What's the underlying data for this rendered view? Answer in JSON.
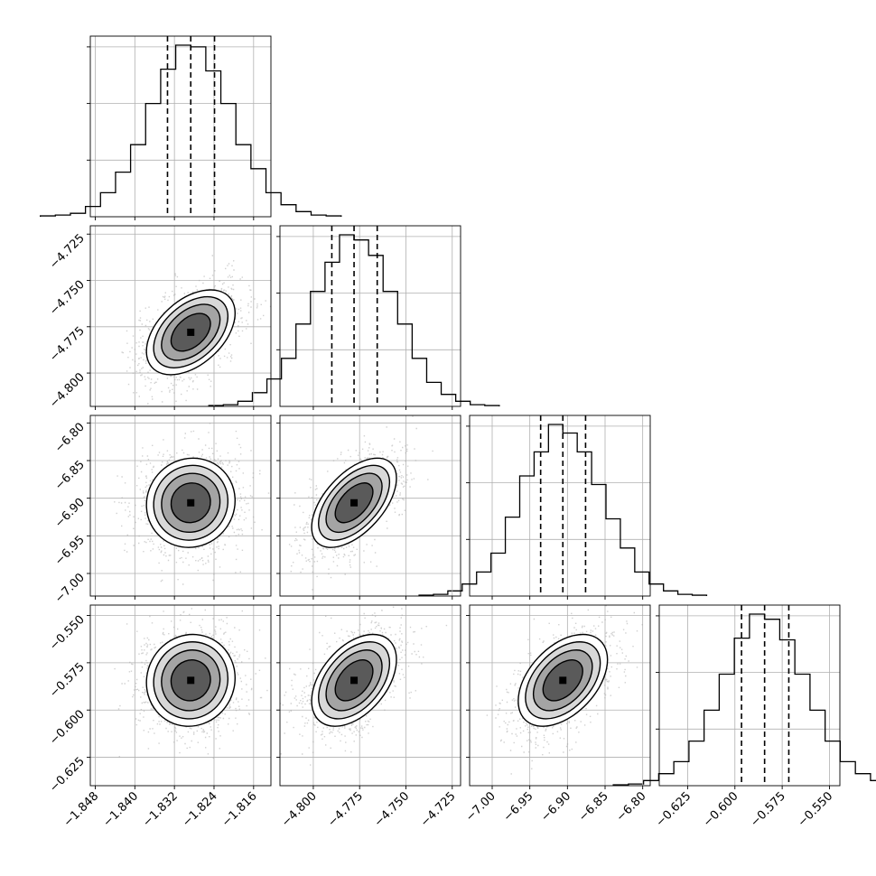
{
  "chart_data": {
    "type": "corner",
    "grid": true,
    "parameters": [
      {
        "xlim": [
          -1.849,
          -1.8125
        ],
        "xticks": [
          -1.848,
          -1.84,
          -1.832,
          -1.824,
          -1.816
        ],
        "xtick_labels": [
          "−1.848",
          "−1.840",
          "−1.832",
          "−1.824",
          "−1.816"
        ],
        "quantiles": [
          -1.8334,
          -1.8287,
          -1.8239
        ],
        "hist_counts": [
          0.5,
          1,
          2,
          6,
          14,
          26,
          42,
          66,
          86,
          100,
          99,
          85,
          66,
          42,
          28,
          14,
          7,
          3,
          1,
          0.5
        ],
        "hist_ytick_fracs": [
          0.33,
          0.66,
          0.99
        ]
      },
      {
        "xlim": [
          -4.818,
          -4.7205
        ],
        "xticks": [
          -4.8,
          -4.775,
          -4.75,
          -4.725
        ],
        "xtick_labels": [
          "−4.800",
          "−4.775",
          "−4.750",
          "−4.725"
        ],
        "ylim": [
          -4.818,
          -4.7205
        ],
        "yticks": [
          -4.8,
          -4.775,
          -4.75,
          -4.725
        ],
        "ytick_labels": [
          "−4.800",
          "−4.775",
          "−4.750",
          "−4.725"
        ],
        "quantiles": [
          -4.79,
          -4.778,
          -4.7655
        ],
        "hist_counts": [
          0.5,
          1,
          3,
          8,
          16,
          28,
          48,
          67,
          84,
          100,
          97,
          88,
          67,
          48,
          28,
          14,
          7,
          3,
          1,
          0.5
        ],
        "hist_ytick_fracs": [
          0.33,
          0.66,
          0.99
        ]
      },
      {
        "xlim": [
          -7.03,
          -6.79
        ],
        "xticks": [
          -7.0,
          -6.95,
          -6.9,
          -6.85,
          -6.8
        ],
        "xtick_labels": [
          "−7.00",
          "−6.95",
          "−6.90",
          "−6.85",
          "−6.80"
        ],
        "ylim": [
          -7.03,
          -6.79
        ],
        "yticks": [
          -7.0,
          -6.95,
          -6.9,
          -6.85,
          -6.8
        ],
        "ytick_labels": [
          "−7.00",
          "−6.95",
          "−6.90",
          "−6.85",
          "−6.80"
        ],
        "quantiles": [
          -6.9356,
          -6.9061,
          -6.8759
        ],
        "hist_counts": [
          0.5,
          1,
          3,
          7,
          14,
          25,
          46,
          70,
          84,
          100,
          95,
          84,
          65,
          45,
          28,
          14,
          7,
          3,
          1,
          0.5
        ],
        "hist_ytick_fracs": [
          0.33,
          0.66,
          0.99
        ]
      },
      {
        "xlim": [
          -0.64,
          -0.5445
        ],
        "xticks": [
          -0.625,
          -0.6,
          -0.575,
          -0.55
        ],
        "xtick_labels": [
          "−0.625",
          "−0.600",
          "−0.575",
          "−0.550"
        ],
        "ylim": [
          -0.64,
          -0.5445
        ],
        "yticks": [
          -0.625,
          -0.6,
          -0.575,
          -0.55
        ],
        "ytick_labels": [
          "−0.625",
          "−0.600",
          "−0.575",
          "−0.550"
        ],
        "quantiles": [
          -0.5965,
          -0.5843,
          -0.5715
        ],
        "hist_counts": [
          0.5,
          1,
          3,
          7,
          14,
          26,
          44,
          65,
          86,
          100,
          97,
          85,
          65,
          44,
          26,
          14,
          7,
          3,
          1,
          0.5
        ],
        "hist_ytick_fracs": [
          0.33,
          0.66,
          0.99
        ]
      }
    ],
    "pairs": [
      {
        "x": 0,
        "y": 1,
        "center": [
          -1.8287,
          -4.778
        ],
        "sd": [
          0.0045,
          0.0115
        ],
        "rho": 0.45,
        "contour_levels": [
          0.39,
          0.86,
          1.39,
          1.98
        ]
      },
      {
        "x": 0,
        "y": 2,
        "center": [
          -1.8287,
          -6.9061
        ],
        "sd": [
          0.0045,
          0.0298
        ],
        "rho": 0.05,
        "contour_levels": [
          0.39,
          0.86,
          1.39,
          1.98
        ]
      },
      {
        "x": 1,
        "y": 2,
        "center": [
          -4.778,
          -6.9061
        ],
        "sd": [
          0.0115,
          0.0298
        ],
        "rho": 0.55,
        "contour_levels": [
          0.39,
          0.86,
          1.39,
          1.98
        ]
      },
      {
        "x": 0,
        "y": 3,
        "center": [
          -1.8287,
          -0.5843
        ],
        "sd": [
          0.0045,
          0.0122
        ],
        "rho": 0.05,
        "contour_levels": [
          0.39,
          0.86,
          1.39,
          1.98
        ]
      },
      {
        "x": 1,
        "y": 3,
        "center": [
          -4.778,
          -0.5843
        ],
        "sd": [
          0.0115,
          0.0122
        ],
        "rho": 0.45,
        "contour_levels": [
          0.39,
          0.86,
          1.39,
          1.98
        ]
      },
      {
        "x": 2,
        "y": 3,
        "center": [
          -6.9061,
          -0.5843
        ],
        "sd": [
          0.0298,
          0.0122
        ],
        "rho": 0.45,
        "contour_levels": [
          0.39,
          0.86,
          1.39,
          1.98
        ]
      }
    ],
    "colors": {
      "line": "#000000",
      "grid": "#b0b0b0",
      "points": "#a9a9a9",
      "background": "#ffffff"
    }
  }
}
